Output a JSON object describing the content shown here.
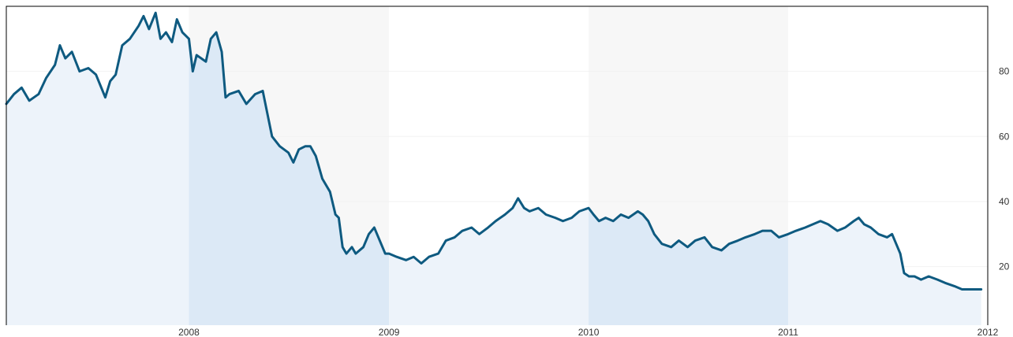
{
  "chart_data": {
    "type": "area",
    "title": "",
    "xlabel": "",
    "ylabel": "",
    "xlim": [
      "2007-02-01",
      "2012-01-01"
    ],
    "ylim": [
      2,
      100
    ],
    "y_ticks": [
      20,
      40,
      60,
      80
    ],
    "y_tick_labels": [
      "20",
      "40",
      "60",
      "80"
    ],
    "x_ticks": [
      "2008-01-01",
      "2009-01-01",
      "2010-01-01",
      "2011-01-01",
      "2012-01-01"
    ],
    "x_tick_labels": [
      "2008",
      "2009",
      "2010",
      "2011",
      "2012"
    ],
    "grid": true,
    "legend": "none",
    "colors": {
      "line": "#0e5a80",
      "area_odd_band": "#dce9f6",
      "area_even_band": "#edf3fa",
      "band_bg_odd": "#f7f7f7",
      "band_bg_even": "#ffffff"
    },
    "series": [
      {
        "points": [
          [
            "2007-02-01",
            70
          ],
          [
            "2007-02-15",
            73
          ],
          [
            "2007-03-01",
            75
          ],
          [
            "2007-03-15",
            71
          ],
          [
            "2007-04-01",
            73
          ],
          [
            "2007-04-15",
            78
          ],
          [
            "2007-05-01",
            82
          ],
          [
            "2007-05-10",
            88
          ],
          [
            "2007-05-20",
            84
          ],
          [
            "2007-06-01",
            86
          ],
          [
            "2007-06-15",
            80
          ],
          [
            "2007-07-01",
            81
          ],
          [
            "2007-07-15",
            79
          ],
          [
            "2007-08-01",
            72
          ],
          [
            "2007-08-10",
            77
          ],
          [
            "2007-08-20",
            79
          ],
          [
            "2007-09-01",
            88
          ],
          [
            "2007-09-15",
            90
          ],
          [
            "2007-10-01",
            94
          ],
          [
            "2007-10-10",
            97
          ],
          [
            "2007-10-20",
            93
          ],
          [
            "2007-11-01",
            98
          ],
          [
            "2007-11-10",
            90
          ],
          [
            "2007-11-20",
            92
          ],
          [
            "2007-12-01",
            89
          ],
          [
            "2007-12-10",
            96
          ],
          [
            "2007-12-20",
            92
          ],
          [
            "2008-01-01",
            90
          ],
          [
            "2008-01-08",
            80
          ],
          [
            "2008-01-15",
            85
          ],
          [
            "2008-02-01",
            83
          ],
          [
            "2008-02-10",
            90
          ],
          [
            "2008-02-20",
            92
          ],
          [
            "2008-03-01",
            86
          ],
          [
            "2008-03-08",
            72
          ],
          [
            "2008-03-15",
            73
          ],
          [
            "2008-04-01",
            74
          ],
          [
            "2008-04-15",
            70
          ],
          [
            "2008-05-01",
            73
          ],
          [
            "2008-05-15",
            74
          ],
          [
            "2008-06-01",
            60
          ],
          [
            "2008-06-15",
            57
          ],
          [
            "2008-07-01",
            55
          ],
          [
            "2008-07-10",
            52
          ],
          [
            "2008-07-20",
            56
          ],
          [
            "2008-08-01",
            57
          ],
          [
            "2008-08-10",
            57
          ],
          [
            "2008-08-20",
            54
          ],
          [
            "2008-09-01",
            47
          ],
          [
            "2008-09-15",
            43
          ],
          [
            "2008-09-25",
            36
          ],
          [
            "2008-10-01",
            35
          ],
          [
            "2008-10-08",
            26
          ],
          [
            "2008-10-15",
            24
          ],
          [
            "2008-10-25",
            26
          ],
          [
            "2008-11-01",
            24
          ],
          [
            "2008-11-15",
            26
          ],
          [
            "2008-11-25",
            30
          ],
          [
            "2008-12-05",
            32
          ],
          [
            "2008-12-15",
            28
          ],
          [
            "2008-12-25",
            24
          ],
          [
            "2009-01-01",
            24
          ],
          [
            "2009-01-15",
            23
          ],
          [
            "2009-02-01",
            22
          ],
          [
            "2009-02-15",
            23
          ],
          [
            "2009-03-01",
            21
          ],
          [
            "2009-03-15",
            23
          ],
          [
            "2009-04-01",
            24
          ],
          [
            "2009-04-15",
            28
          ],
          [
            "2009-05-01",
            29
          ],
          [
            "2009-05-15",
            31
          ],
          [
            "2009-06-01",
            32
          ],
          [
            "2009-06-15",
            30
          ],
          [
            "2009-07-01",
            32
          ],
          [
            "2009-07-15",
            34
          ],
          [
            "2009-08-01",
            36
          ],
          [
            "2009-08-15",
            38
          ],
          [
            "2009-08-25",
            41
          ],
          [
            "2009-09-05",
            38
          ],
          [
            "2009-09-15",
            37
          ],
          [
            "2009-10-01",
            38
          ],
          [
            "2009-10-15",
            36
          ],
          [
            "2009-11-01",
            35
          ],
          [
            "2009-11-15",
            34
          ],
          [
            "2009-12-01",
            35
          ],
          [
            "2009-12-15",
            37
          ],
          [
            "2010-01-01",
            38
          ],
          [
            "2010-01-10",
            36
          ],
          [
            "2010-01-20",
            34
          ],
          [
            "2010-02-01",
            35
          ],
          [
            "2010-02-15",
            34
          ],
          [
            "2010-03-01",
            36
          ],
          [
            "2010-03-15",
            35
          ],
          [
            "2010-04-01",
            37
          ],
          [
            "2010-04-10",
            36
          ],
          [
            "2010-04-20",
            34
          ],
          [
            "2010-05-01",
            30
          ],
          [
            "2010-05-15",
            27
          ],
          [
            "2010-06-01",
            26
          ],
          [
            "2010-06-15",
            28
          ],
          [
            "2010-07-01",
            26
          ],
          [
            "2010-07-15",
            28
          ],
          [
            "2010-08-01",
            29
          ],
          [
            "2010-08-15",
            26
          ],
          [
            "2010-09-01",
            25
          ],
          [
            "2010-09-15",
            27
          ],
          [
            "2010-10-01",
            28
          ],
          [
            "2010-10-15",
            29
          ],
          [
            "2010-11-01",
            30
          ],
          [
            "2010-11-15",
            31
          ],
          [
            "2010-12-01",
            31
          ],
          [
            "2010-12-15",
            29
          ],
          [
            "2011-01-01",
            30
          ],
          [
            "2011-01-15",
            31
          ],
          [
            "2011-02-01",
            32
          ],
          [
            "2011-02-15",
            33
          ],
          [
            "2011-03-01",
            34
          ],
          [
            "2011-03-15",
            33
          ],
          [
            "2011-04-01",
            31
          ],
          [
            "2011-04-15",
            32
          ],
          [
            "2011-05-01",
            34
          ],
          [
            "2011-05-10",
            35
          ],
          [
            "2011-05-20",
            33
          ],
          [
            "2011-06-01",
            32
          ],
          [
            "2011-06-15",
            30
          ],
          [
            "2011-07-01",
            29
          ],
          [
            "2011-07-10",
            30
          ],
          [
            "2011-07-20",
            26
          ],
          [
            "2011-07-25",
            24
          ],
          [
            "2011-08-01",
            18
          ],
          [
            "2011-08-10",
            17
          ],
          [
            "2011-08-20",
            17
          ],
          [
            "2011-09-01",
            16
          ],
          [
            "2011-09-15",
            17
          ],
          [
            "2011-10-01",
            16
          ],
          [
            "2011-10-15",
            15
          ],
          [
            "2011-11-01",
            14
          ],
          [
            "2011-11-15",
            13
          ],
          [
            "2011-12-01",
            13
          ],
          [
            "2011-12-20",
            13
          ]
        ]
      }
    ]
  }
}
